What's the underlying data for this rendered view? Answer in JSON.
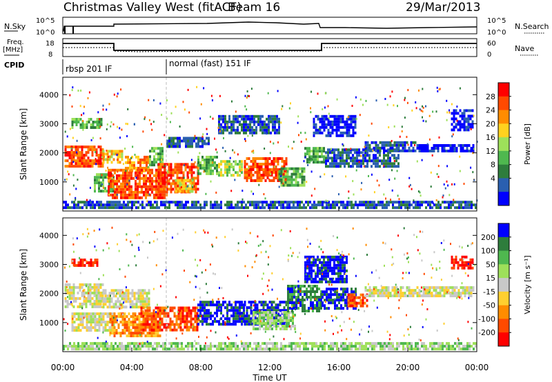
{
  "header": {
    "station": "Christmas Valley West (fitACF)",
    "beam": "Beam 16",
    "date": "29/Mar/2013"
  },
  "summary": {
    "nsky_label": "N.Sky",
    "nsearch_label": "N.Search",
    "nsky_ticks": [
      "10^5",
      "10^0"
    ],
    "freq_label_top": "Freq.",
    "freq_label_bottom": "[MHz]",
    "freq_ticks": [
      "18",
      "8"
    ],
    "nave_label": "Nave",
    "nave_ticks": [
      "60",
      "0"
    ],
    "cpid_label": "CPID",
    "cpid_segments": [
      {
        "label": "rbsp 201 IF",
        "start_hour": 0
      },
      {
        "label": "normal (fast) 151 IF",
        "start_hour": 6
      }
    ]
  },
  "chart_data": [
    {
      "type": "heatmap",
      "name": "power",
      "ylabel": "Slant Range [km]",
      "yticks": [
        1000,
        2000,
        3000,
        4000
      ],
      "ylim": [
        0,
        4600
      ],
      "colorbar_label": "Power [dB]",
      "colorbar_ticks": [
        "28",
        "24",
        "20",
        "16",
        "12",
        "8",
        "4"
      ],
      "colors": [
        "#0000ff",
        "#2a5fb0",
        "#2e7d3c",
        "#4fb84f",
        "#9ee05a",
        "#ffd21f",
        "#ff8c00",
        "#ff4a00",
        "#ff0000"
      ],
      "regions": [
        {
          "t0": 0.1,
          "t1": 2.3,
          "r0": 1550,
          "r1": 2250,
          "level": 7
        },
        {
          "t0": 2.3,
          "t1": 3.4,
          "r0": 1700,
          "r1": 2100,
          "level": 5
        },
        {
          "t0": 3.6,
          "t1": 5.0,
          "r0": 1350,
          "r1": 1900,
          "level": 6
        },
        {
          "t0": 5.0,
          "t1": 5.8,
          "r0": 1600,
          "r1": 2200,
          "level": 3
        },
        {
          "t0": 1.8,
          "t1": 3.0,
          "r0": 700,
          "r1": 1300,
          "level": 3
        },
        {
          "t0": 2.6,
          "t1": 6.0,
          "r0": 500,
          "r1": 1450,
          "level": 7
        },
        {
          "t0": 5.5,
          "t1": 7.8,
          "r0": 650,
          "r1": 1650,
          "level": 7
        },
        {
          "t0": 6.5,
          "t1": 7.5,
          "r0": 700,
          "r1": 1100,
          "level": 5
        },
        {
          "t0": 7.8,
          "t1": 9.0,
          "r0": 1300,
          "r1": 1900,
          "level": 3
        },
        {
          "t0": 9.0,
          "t1": 10.4,
          "r0": 1200,
          "r1": 1750,
          "level": 4
        },
        {
          "t0": 10.5,
          "t1": 13.0,
          "r0": 1050,
          "r1": 1850,
          "level": 7
        },
        {
          "t0": 12.5,
          "t1": 14.0,
          "r0": 850,
          "r1": 1500,
          "level": 3
        },
        {
          "t0": 14.0,
          "t1": 15.2,
          "r0": 1700,
          "r1": 2200,
          "level": 3
        },
        {
          "t0": 15.2,
          "t1": 19.5,
          "r0": 1550,
          "r1": 2150,
          "level": 1
        },
        {
          "t0": 17.5,
          "t1": 20.5,
          "r0": 2050,
          "r1": 2400,
          "level": 1
        },
        {
          "t0": 20.5,
          "t1": 23.8,
          "r0": 2050,
          "r1": 2300,
          "level": 0
        },
        {
          "t0": 14.5,
          "t1": 17.0,
          "r0": 2600,
          "r1": 3300,
          "level": 0
        },
        {
          "t0": 9.0,
          "t1": 12.5,
          "r0": 2700,
          "r1": 3300,
          "level": 1
        },
        {
          "t0": 22.5,
          "t1": 23.8,
          "r0": 2800,
          "r1": 3500,
          "level": 0
        },
        {
          "t0": 0.5,
          "t1": 2.2,
          "r0": 2900,
          "r1": 3200,
          "level": 3
        },
        {
          "t0": 6.0,
          "t1": 8.5,
          "r0": 2250,
          "r1": 2550,
          "level": 1
        },
        {
          "t0": 0.0,
          "t1": 24.0,
          "r0": 100,
          "r1": 350,
          "level": 1
        }
      ]
    },
    {
      "type": "heatmap",
      "name": "velocity",
      "ylabel": "Slant Range [km]",
      "yticks": [
        1000,
        2000,
        3000,
        4000
      ],
      "ylim": [
        0,
        4600
      ],
      "colorbar_label": "Velocity [m s⁻¹]",
      "colorbar_ticks": [
        "200",
        "100",
        "50",
        "15",
        "-15",
        "-50",
        "-100",
        "-200"
      ],
      "colors": [
        "#ff0000",
        "#ff4a00",
        "#ff8c00",
        "#ffcf30",
        "#c8c8c8",
        "#9ee05a",
        "#4fb84f",
        "#2e7d3c",
        "#0000ff"
      ],
      "regions": [
        {
          "t0": 0.1,
          "t1": 2.3,
          "r0": 1550,
          "r1": 2350,
          "level": 4
        },
        {
          "t0": 2.3,
          "t1": 5.0,
          "r0": 1500,
          "r1": 2150,
          "level": 4
        },
        {
          "t0": 0.5,
          "t1": 3.0,
          "r0": 700,
          "r1": 1350,
          "level": 4
        },
        {
          "t0": 2.7,
          "t1": 5.6,
          "r0": 500,
          "r1": 1350,
          "level": 2
        },
        {
          "t0": 4.5,
          "t1": 7.8,
          "r0": 750,
          "r1": 1550,
          "level": 1
        },
        {
          "t0": 7.8,
          "t1": 10.5,
          "r0": 900,
          "r1": 1750,
          "level": 8
        },
        {
          "t0": 10.5,
          "t1": 13.0,
          "r0": 950,
          "r1": 1750,
          "level": 8
        },
        {
          "t0": 11.0,
          "t1": 13.5,
          "r0": 800,
          "r1": 1400,
          "level": 5
        },
        {
          "t0": 13.0,
          "t1": 15.0,
          "r0": 1400,
          "r1": 2300,
          "level": 7
        },
        {
          "t0": 15.0,
          "t1": 17.0,
          "r0": 1500,
          "r1": 2200,
          "level": 8
        },
        {
          "t0": 16.5,
          "t1": 17.6,
          "r0": 1600,
          "r1": 2000,
          "level": 1
        },
        {
          "t0": 17.5,
          "t1": 23.8,
          "r0": 1950,
          "r1": 2250,
          "level": 4
        },
        {
          "t0": 14.0,
          "t1": 16.5,
          "r0": 2400,
          "r1": 3300,
          "level": 8
        },
        {
          "t0": 22.5,
          "t1": 23.8,
          "r0": 2900,
          "r1": 3300,
          "level": 0
        },
        {
          "t0": 0.5,
          "t1": 2.0,
          "r0": 3000,
          "r1": 3200,
          "level": 0
        },
        {
          "t0": 0.0,
          "t1": 24.0,
          "r0": 100,
          "r1": 330,
          "level": 5
        }
      ]
    }
  ],
  "xaxis": {
    "xlabel": "Time UT",
    "xlim": [
      0,
      24
    ],
    "ticks": [
      {
        "hour": 0,
        "label": "00:00"
      },
      {
        "hour": 4,
        "label": "04:00"
      },
      {
        "hour": 8,
        "label": "08:00"
      },
      {
        "hour": 12,
        "label": "12:00"
      },
      {
        "hour": 16,
        "label": "16:00"
      },
      {
        "hour": 20,
        "label": "20:00"
      },
      {
        "hour": 24,
        "label": "00:00"
      }
    ]
  }
}
